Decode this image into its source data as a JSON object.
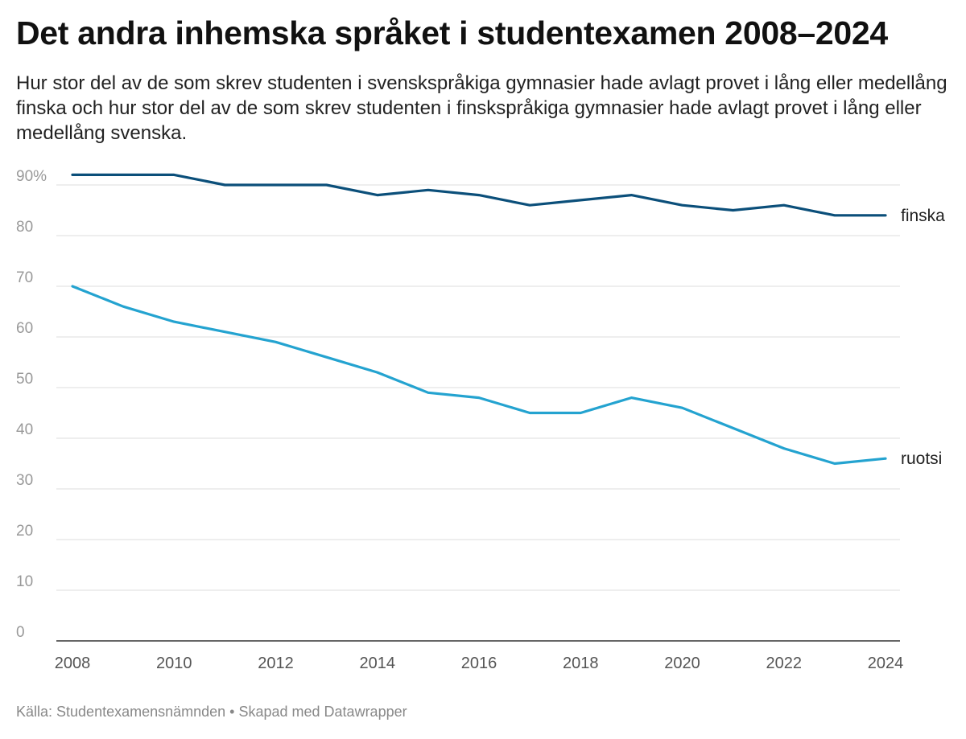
{
  "header": {
    "title": "Det andra inhemska språket i studentexamen 2008–2024",
    "subtitle": "Hur stor del av de som skrev studenten i svenskspråkiga gymnasier hade avlagt provet i lång eller medellång finska och hur stor del av de som skrev studenten i finskspråkiga gymnasier hade avlagt provet i lång eller medellång svenska."
  },
  "footer": {
    "source": "Källa: Studentexamensnämnden • Skapad med Datawrapper"
  },
  "chart_data": {
    "type": "line",
    "title": "Det andra inhemska språket i studentexamen 2008–2024",
    "xlabel": "",
    "ylabel": "",
    "x": [
      2008,
      2009,
      2010,
      2011,
      2012,
      2013,
      2014,
      2015,
      2016,
      2017,
      2018,
      2019,
      2020,
      2021,
      2022,
      2023,
      2024
    ],
    "xticks": [
      "2008",
      "2010",
      "2012",
      "2014",
      "2016",
      "2018",
      "2020",
      "2022",
      "2024"
    ],
    "yticks": [
      "90%",
      "80",
      "70",
      "60",
      "50",
      "40",
      "30",
      "20",
      "10",
      "0"
    ],
    "ylim": [
      0,
      90
    ],
    "xlim": [
      2008,
      2024
    ],
    "grid": true,
    "series": [
      {
        "name": "finska",
        "color": "#0b4f7a",
        "values": [
          92,
          92,
          92,
          90,
          90,
          90,
          88,
          89,
          88,
          86,
          87,
          88,
          86,
          85,
          86,
          84,
          84
        ]
      },
      {
        "name": "ruotsi",
        "color": "#24a3d0",
        "values": [
          70,
          66,
          63,
          61,
          59,
          56,
          53,
          49,
          48,
          45,
          45,
          48,
          46,
          42,
          38,
          35,
          36
        ]
      }
    ]
  }
}
